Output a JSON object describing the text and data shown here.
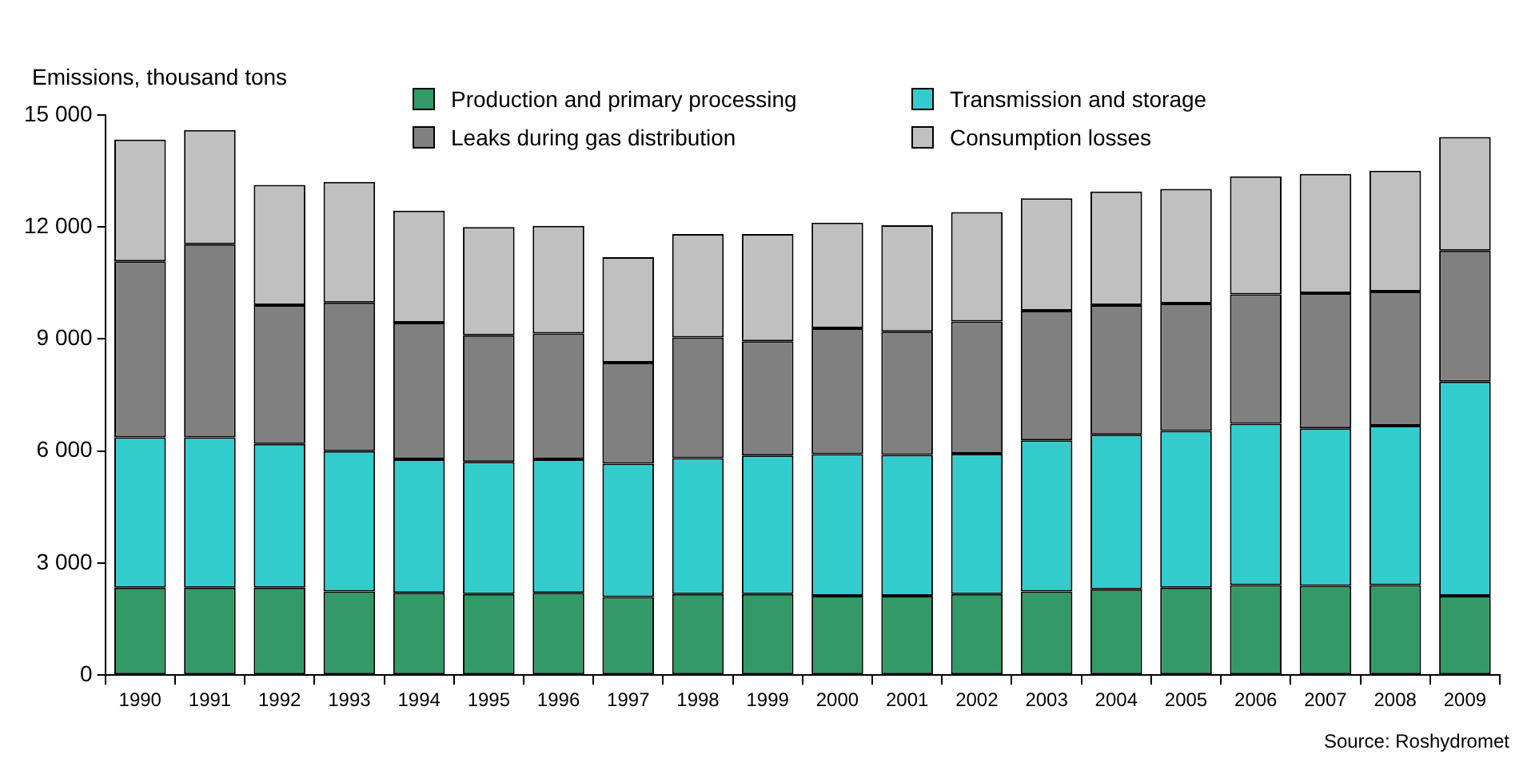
{
  "chart_data": {
    "type": "bar",
    "stacked": true,
    "ylabel": "Emissions, thousand tons",
    "annotations": [
      "Source: Roshydromet"
    ],
    "categories": [
      "1990",
      "1991",
      "1992",
      "1993",
      "1994",
      "1995",
      "1996",
      "1997",
      "1998",
      "1999",
      "2000",
      "2001",
      "2002",
      "2003",
      "2004",
      "2005",
      "2006",
      "2007",
      "2008",
      "2009"
    ],
    "series": [
      {
        "name": "Production and primary processing",
        "color": "#339966",
        "values": [
          2340,
          2340,
          2340,
          2240,
          2200,
          2170,
          2200,
          2090,
          2170,
          2170,
          2120,
          2120,
          2170,
          2240,
          2300,
          2340,
          2410,
          2390,
          2410,
          2120
        ]
      },
      {
        "name": "Transmission and storage",
        "color": "#33cccc",
        "values": [
          4030,
          4030,
          3850,
          3760,
          3580,
          3540,
          3580,
          3570,
          3640,
          3710,
          3800,
          3780,
          3760,
          4050,
          4140,
          4200,
          4320,
          4220,
          4270,
          5740
        ]
      },
      {
        "name": "Leaks during gas distribution",
        "color": "#808080",
        "values": [
          4710,
          5170,
          3720,
          3980,
          3660,
          3390,
          3370,
          2710,
          3230,
          3060,
          3370,
          3300,
          3540,
          3470,
          3470,
          3410,
          3470,
          3620,
          3590,
          3510
        ]
      },
      {
        "name": "Consumption losses",
        "color": "#c0c0c0",
        "values": [
          3260,
          3060,
          3220,
          3230,
          3000,
          2900,
          2880,
          2820,
          2770,
          2870,
          2830,
          2850,
          2930,
          3010,
          3040,
          3070,
          3160,
          3190,
          3240,
          3040
        ]
      }
    ],
    "ylim": [
      0,
      15000
    ],
    "yticks": [
      {
        "value": 0,
        "label": "0"
      },
      {
        "value": 3000,
        "label": "3 000"
      },
      {
        "value": 6000,
        "label": "6 000"
      },
      {
        "value": 9000,
        "label": "9 000"
      },
      {
        "value": 12000,
        "label": "12 000"
      },
      {
        "value": 15000,
        "label": "15 000"
      }
    ],
    "legend": "top"
  }
}
